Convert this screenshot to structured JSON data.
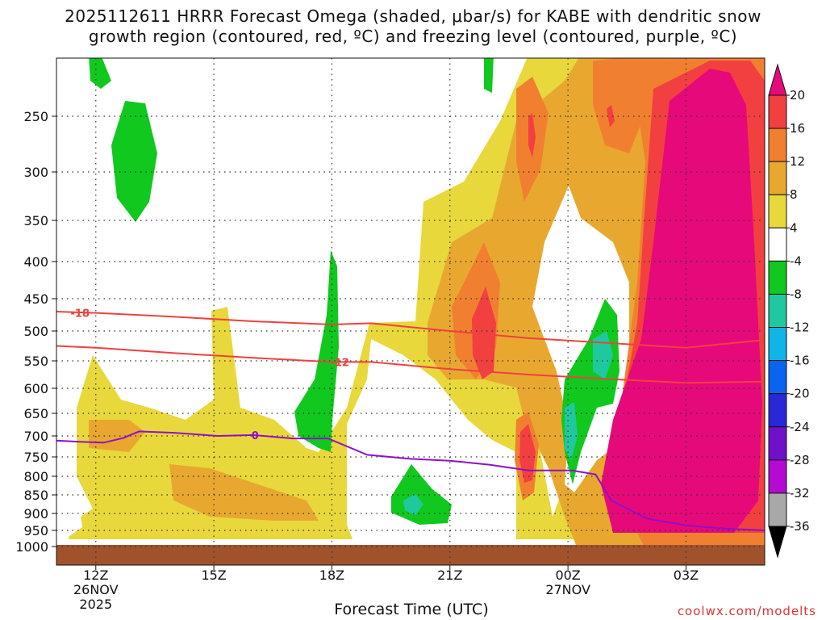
{
  "chart_data": {
    "type": "heatmap",
    "title_line1": "2025112611 HRRR Forecast Omega (shaded, μbar/s) for KABE with dendritic snow",
    "title_line2": "growth region (contoured, red, ºC) and freezing level (contoured, purple, ºC)",
    "xlabel": "Forecast Time (UTC)",
    "credit": "coolwx.com/modelts",
    "x_ticks": [
      {
        "hour": 12,
        "label": "12Z",
        "sub1": "26NOV",
        "sub2": "2025"
      },
      {
        "hour": 15,
        "label": "15Z",
        "sub1": "",
        "sub2": ""
      },
      {
        "hour": 18,
        "label": "18Z",
        "sub1": "",
        "sub2": ""
      },
      {
        "hour": 21,
        "label": "21Z",
        "sub1": "",
        "sub2": ""
      },
      {
        "hour": 24,
        "label": "00Z",
        "sub1": "27NOV",
        "sub2": ""
      },
      {
        "hour": 27,
        "label": "03Z",
        "sub1": "",
        "sub2": ""
      }
    ],
    "xlim": [
      11,
      29
    ],
    "y_ticks": [
      250,
      300,
      350,
      400,
      450,
      500,
      550,
      600,
      650,
      700,
      750,
      800,
      850,
      900,
      950,
      1000
    ],
    "ylim_hpa": [
      1000,
      200
    ],
    "colorbar": {
      "levels": [
        "20",
        "16",
        "12",
        "8",
        "4",
        "-4",
        "-8",
        "-12",
        "-16",
        "-20",
        "-24",
        "-28",
        "-32",
        "-36"
      ],
      "colors": [
        "#e6097a",
        "#f24040",
        "#f08030",
        "#e8a830",
        "#e8d83c",
        "#ffffff",
        "#10c81e",
        "#20c8a0",
        "#10b4e6",
        "#0a64f0",
        "#2828d8",
        "#7010c8",
        "#b40ad2",
        "#a8a8a8",
        "#000000"
      ]
    },
    "contours": [
      {
        "name": "dendritic-upper",
        "label": "-18",
        "color": "#f04040",
        "points": [
          [
            11,
            470
          ],
          [
            12,
            472
          ],
          [
            14,
            478
          ],
          [
            16,
            485
          ],
          [
            18,
            490
          ],
          [
            19,
            488
          ],
          [
            21,
            500
          ],
          [
            23,
            512
          ],
          [
            25,
            520
          ],
          [
            27,
            528
          ],
          [
            29,
            515
          ]
        ]
      },
      {
        "name": "dendritic-lower",
        "label": "-12",
        "color": "#f04040",
        "points": [
          [
            11,
            525
          ],
          [
            12,
            528
          ],
          [
            14,
            537
          ],
          [
            16,
            545
          ],
          [
            18,
            552
          ],
          [
            19,
            552
          ],
          [
            21,
            565
          ],
          [
            23,
            575
          ],
          [
            25,
            583
          ],
          [
            27,
            590
          ],
          [
            29,
            588
          ]
        ]
      },
      {
        "name": "freezing-level",
        "label": "0",
        "color": "#9010c8",
        "points": [
          [
            11,
            711
          ],
          [
            11.6,
            714
          ],
          [
            12.2,
            716
          ],
          [
            12.7,
            705
          ],
          [
            13.1,
            690
          ],
          [
            14,
            693
          ],
          [
            15.1,
            700
          ],
          [
            16,
            698
          ],
          [
            17,
            706
          ],
          [
            17.9,
            706
          ],
          [
            18.9,
            745
          ],
          [
            20,
            755
          ],
          [
            21,
            760
          ],
          [
            22,
            770
          ],
          [
            23,
            785
          ],
          [
            24.1,
            785
          ],
          [
            24.7,
            795
          ],
          [
            25.1,
            865
          ],
          [
            26,
            915
          ],
          [
            27,
            935
          ],
          [
            28,
            945
          ],
          [
            29,
            950
          ]
        ]
      }
    ]
  }
}
